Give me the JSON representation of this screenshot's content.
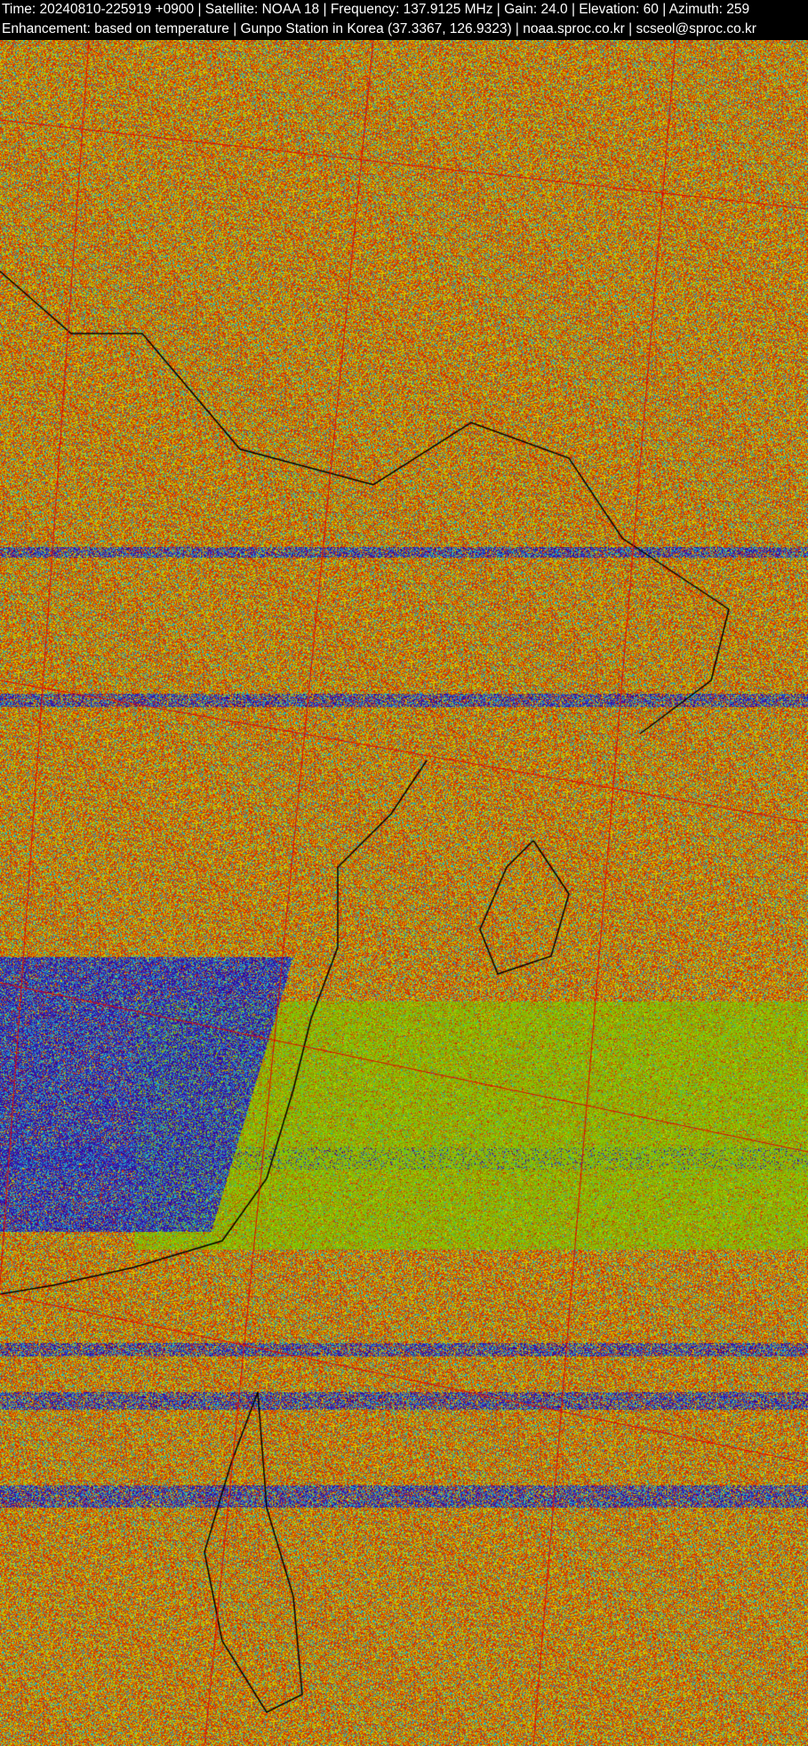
{
  "header": {
    "line1": "Time: 20240810-225919 +0900  |  Satellite: NOAA 18  |  Frequency: 137.9125 MHz  |  Gain: 24.0  |  Elevation: 60  |  Azimuth: 259",
    "line2": "Enhancement: based on temperature  |  Gunpo Station in Korea (37.3367, 126.9323)  |  noaa.sproc.co.kr  |  scseol@sproc.co.kr"
  },
  "image": {
    "type": "NOAA APT satellite image, temperature-enhanced",
    "colors": {
      "red": "#d42a00",
      "orange": "#e06a00",
      "yellow": "#d8d000",
      "green": "#80d000",
      "olive": "#a0a000",
      "cyan": "#20b0c0",
      "blue": "#2020b0",
      "indigo": "#3a0090",
      "coastline": "#000000",
      "grid": "#e00000"
    }
  }
}
